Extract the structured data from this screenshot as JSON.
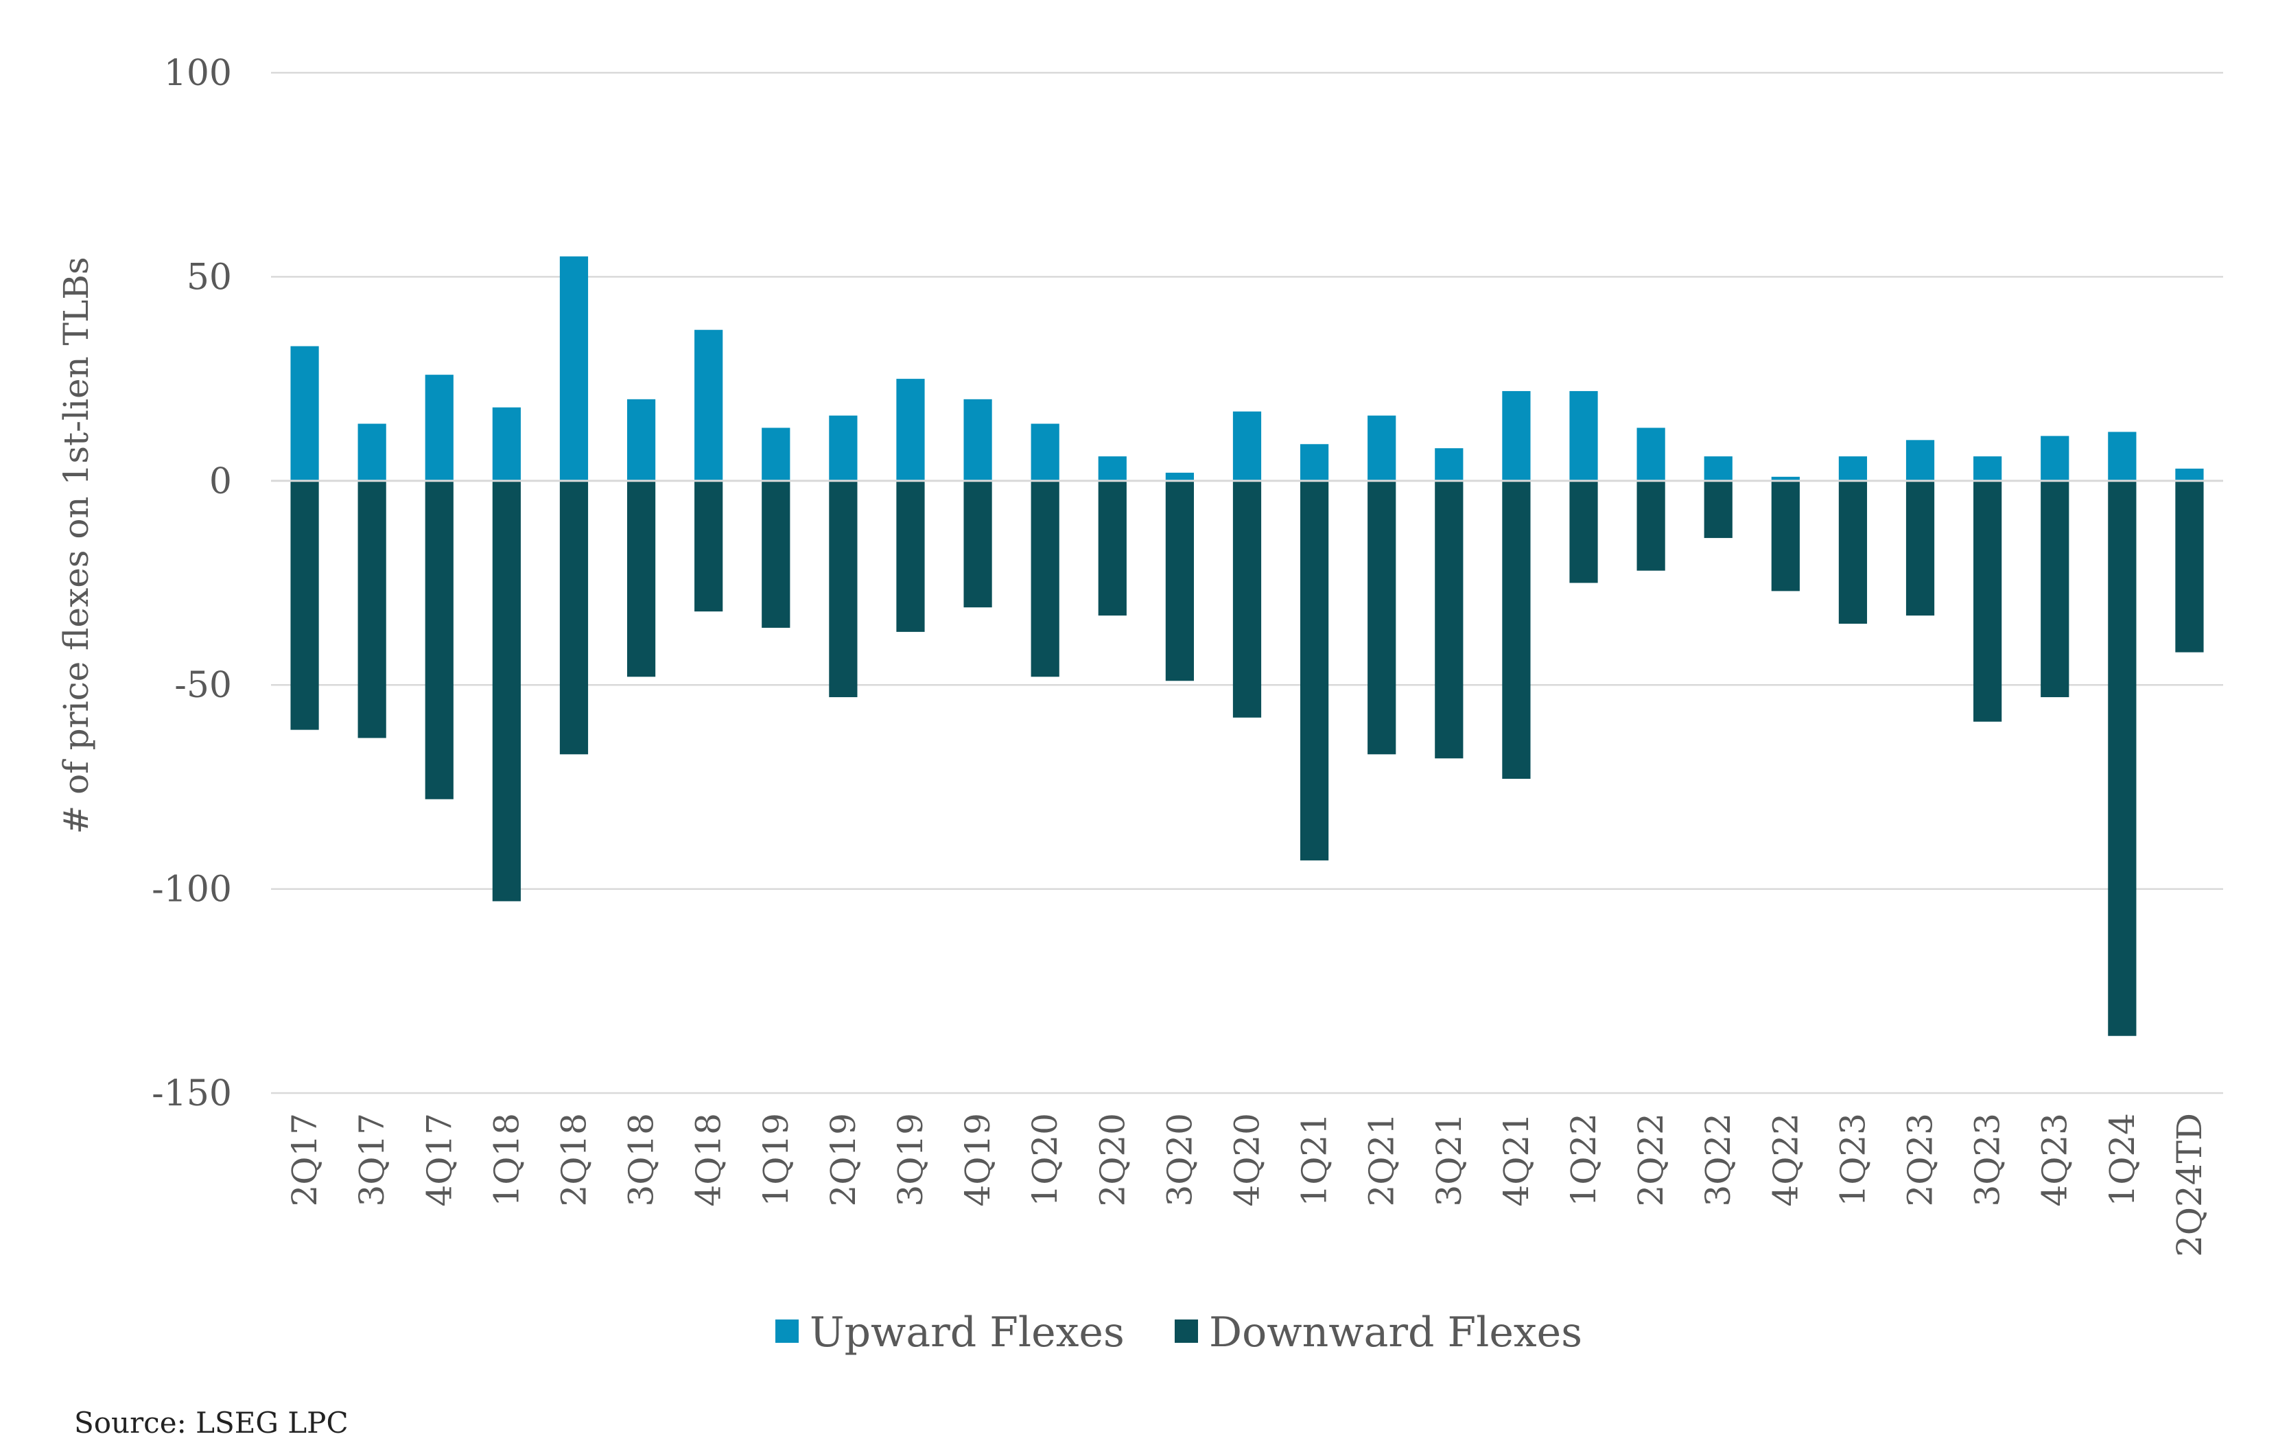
{
  "colors": {
    "upward": "#0590BD",
    "downward": "#0A4F58",
    "grid": "#D9D9D9",
    "text": "#595959"
  },
  "chart_data": {
    "type": "bar",
    "stacked": true,
    "title": "",
    "xlabel": "",
    "ylabel": "# of price flexes on 1st-lien TLBs",
    "ylim": [
      -150,
      100
    ],
    "yticks": [
      100,
      50,
      0,
      -50,
      -100,
      -150
    ],
    "grid": true,
    "legend_position": "bottom",
    "categories": [
      "2Q17",
      "3Q17",
      "4Q17",
      "1Q18",
      "2Q18",
      "3Q18",
      "4Q18",
      "1Q19",
      "2Q19",
      "3Q19",
      "4Q19",
      "1Q20",
      "2Q20",
      "3Q20",
      "4Q20",
      "1Q21",
      "2Q21",
      "3Q21",
      "4Q21",
      "1Q22",
      "2Q22",
      "3Q22",
      "4Q22",
      "1Q23",
      "2Q23",
      "3Q23",
      "4Q23",
      "1Q24",
      "2Q24TD"
    ],
    "series": [
      {
        "name": "Upward Flexes",
        "values": [
          33,
          14,
          26,
          18,
          55,
          20,
          37,
          13,
          16,
          25,
          20,
          14,
          6,
          2,
          17,
          9,
          16,
          8,
          22,
          22,
          13,
          6,
          1,
          6,
          10,
          6,
          11,
          12,
          3
        ]
      },
      {
        "name": "Downward Flexes",
        "values": [
          -61,
          -63,
          -78,
          -103,
          -67,
          -48,
          -32,
          -36,
          -53,
          -37,
          -31,
          -48,
          -33,
          -49,
          -58,
          -93,
          -67,
          -68,
          -73,
          -25,
          -22,
          -14,
          -27,
          -35,
          -33,
          -59,
          -53,
          -136,
          -42
        ]
      }
    ]
  },
  "source": "Source:  LSEG LPC"
}
